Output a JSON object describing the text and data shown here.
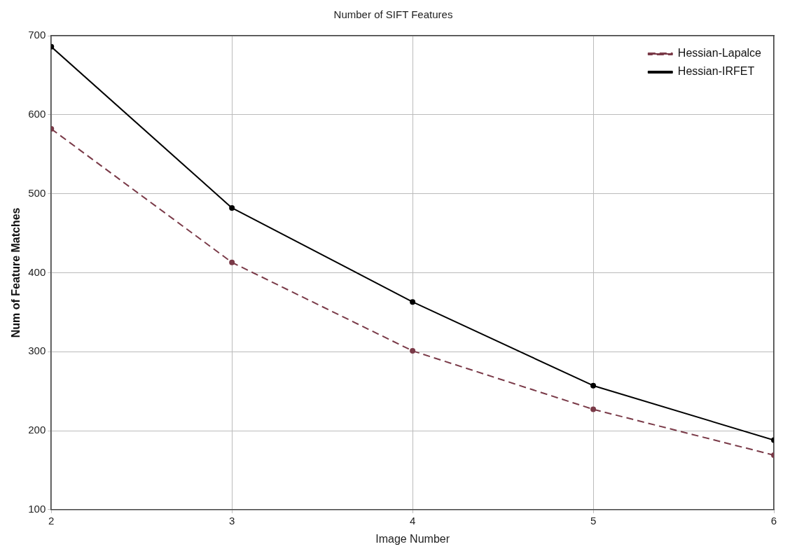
{
  "chart_data": {
    "type": "line",
    "title": "Number of SIFT Features",
    "xlabel": "Image Number",
    "ylabel": "Num of Feature Matches",
    "x": [
      2,
      3,
      4,
      5,
      6
    ],
    "xlim": [
      2,
      6
    ],
    "xticks": [
      2,
      3,
      4,
      5,
      6
    ],
    "ylim": [
      100,
      700
    ],
    "yticks": [
      100,
      200,
      300,
      400,
      500,
      600,
      700
    ],
    "grid": true,
    "legend": "top right",
    "marker": "circle",
    "series": [
      {
        "name": "Hessian-Lapalce",
        "color": "#7a3a48",
        "line_style": "dashed",
        "values": [
          582,
          413,
          301,
          227,
          169
        ]
      },
      {
        "name": "Hessian-IRFET",
        "color": "#000000",
        "line_style": "solid",
        "values": [
          686,
          482,
          363,
          257,
          188
        ]
      }
    ]
  }
}
